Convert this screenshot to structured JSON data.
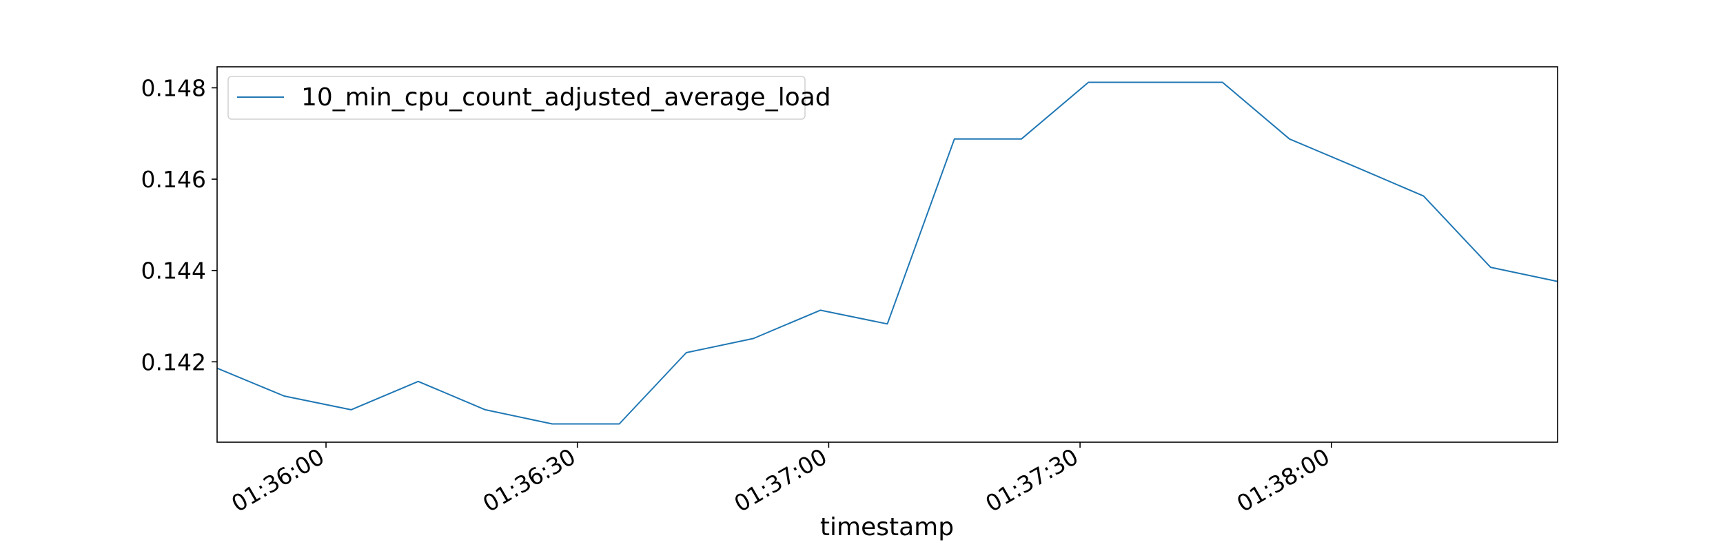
{
  "chart_data": {
    "type": "line",
    "title": "",
    "xlabel": "timestamp",
    "ylabel": "",
    "x_unit": "time",
    "x": [
      "01:35:47",
      "01:35:55",
      "01:36:03",
      "01:36:11",
      "01:36:19",
      "01:36:27",
      "01:36:35",
      "01:36:43",
      "01:36:51",
      "01:36:59",
      "01:37:07",
      "01:37:15",
      "01:37:23",
      "01:37:31",
      "01:37:39",
      "01:37:47",
      "01:37:55",
      "01:38:03",
      "01:38:11",
      "01:38:19",
      "01:38:27"
    ],
    "series": [
      {
        "name": "10_min_cpu_count_adjusted_average_load",
        "color": "#1f77b4",
        "values": [
          0.14186,
          0.14125,
          0.14095,
          0.14157,
          0.14095,
          0.14064,
          0.14064,
          0.1422,
          0.14251,
          0.14313,
          0.14283,
          0.14688,
          0.14688,
          0.14812,
          0.14812,
          0.14812,
          0.14688,
          0.14626,
          0.14563,
          0.14407,
          0.14376
        ]
      }
    ],
    "xlim": [
      "01:35:47",
      "01:38:27"
    ],
    "ylim": [
      0.14024,
      0.14846
    ],
    "x_ticks": [
      "01:36:00",
      "01:36:30",
      "01:37:00",
      "01:37:30",
      "01:38:00"
    ],
    "y_ticks": [
      "0.142",
      "0.144",
      "0.146",
      "0.148"
    ],
    "grid": false,
    "legend_position": "upper-left"
  }
}
